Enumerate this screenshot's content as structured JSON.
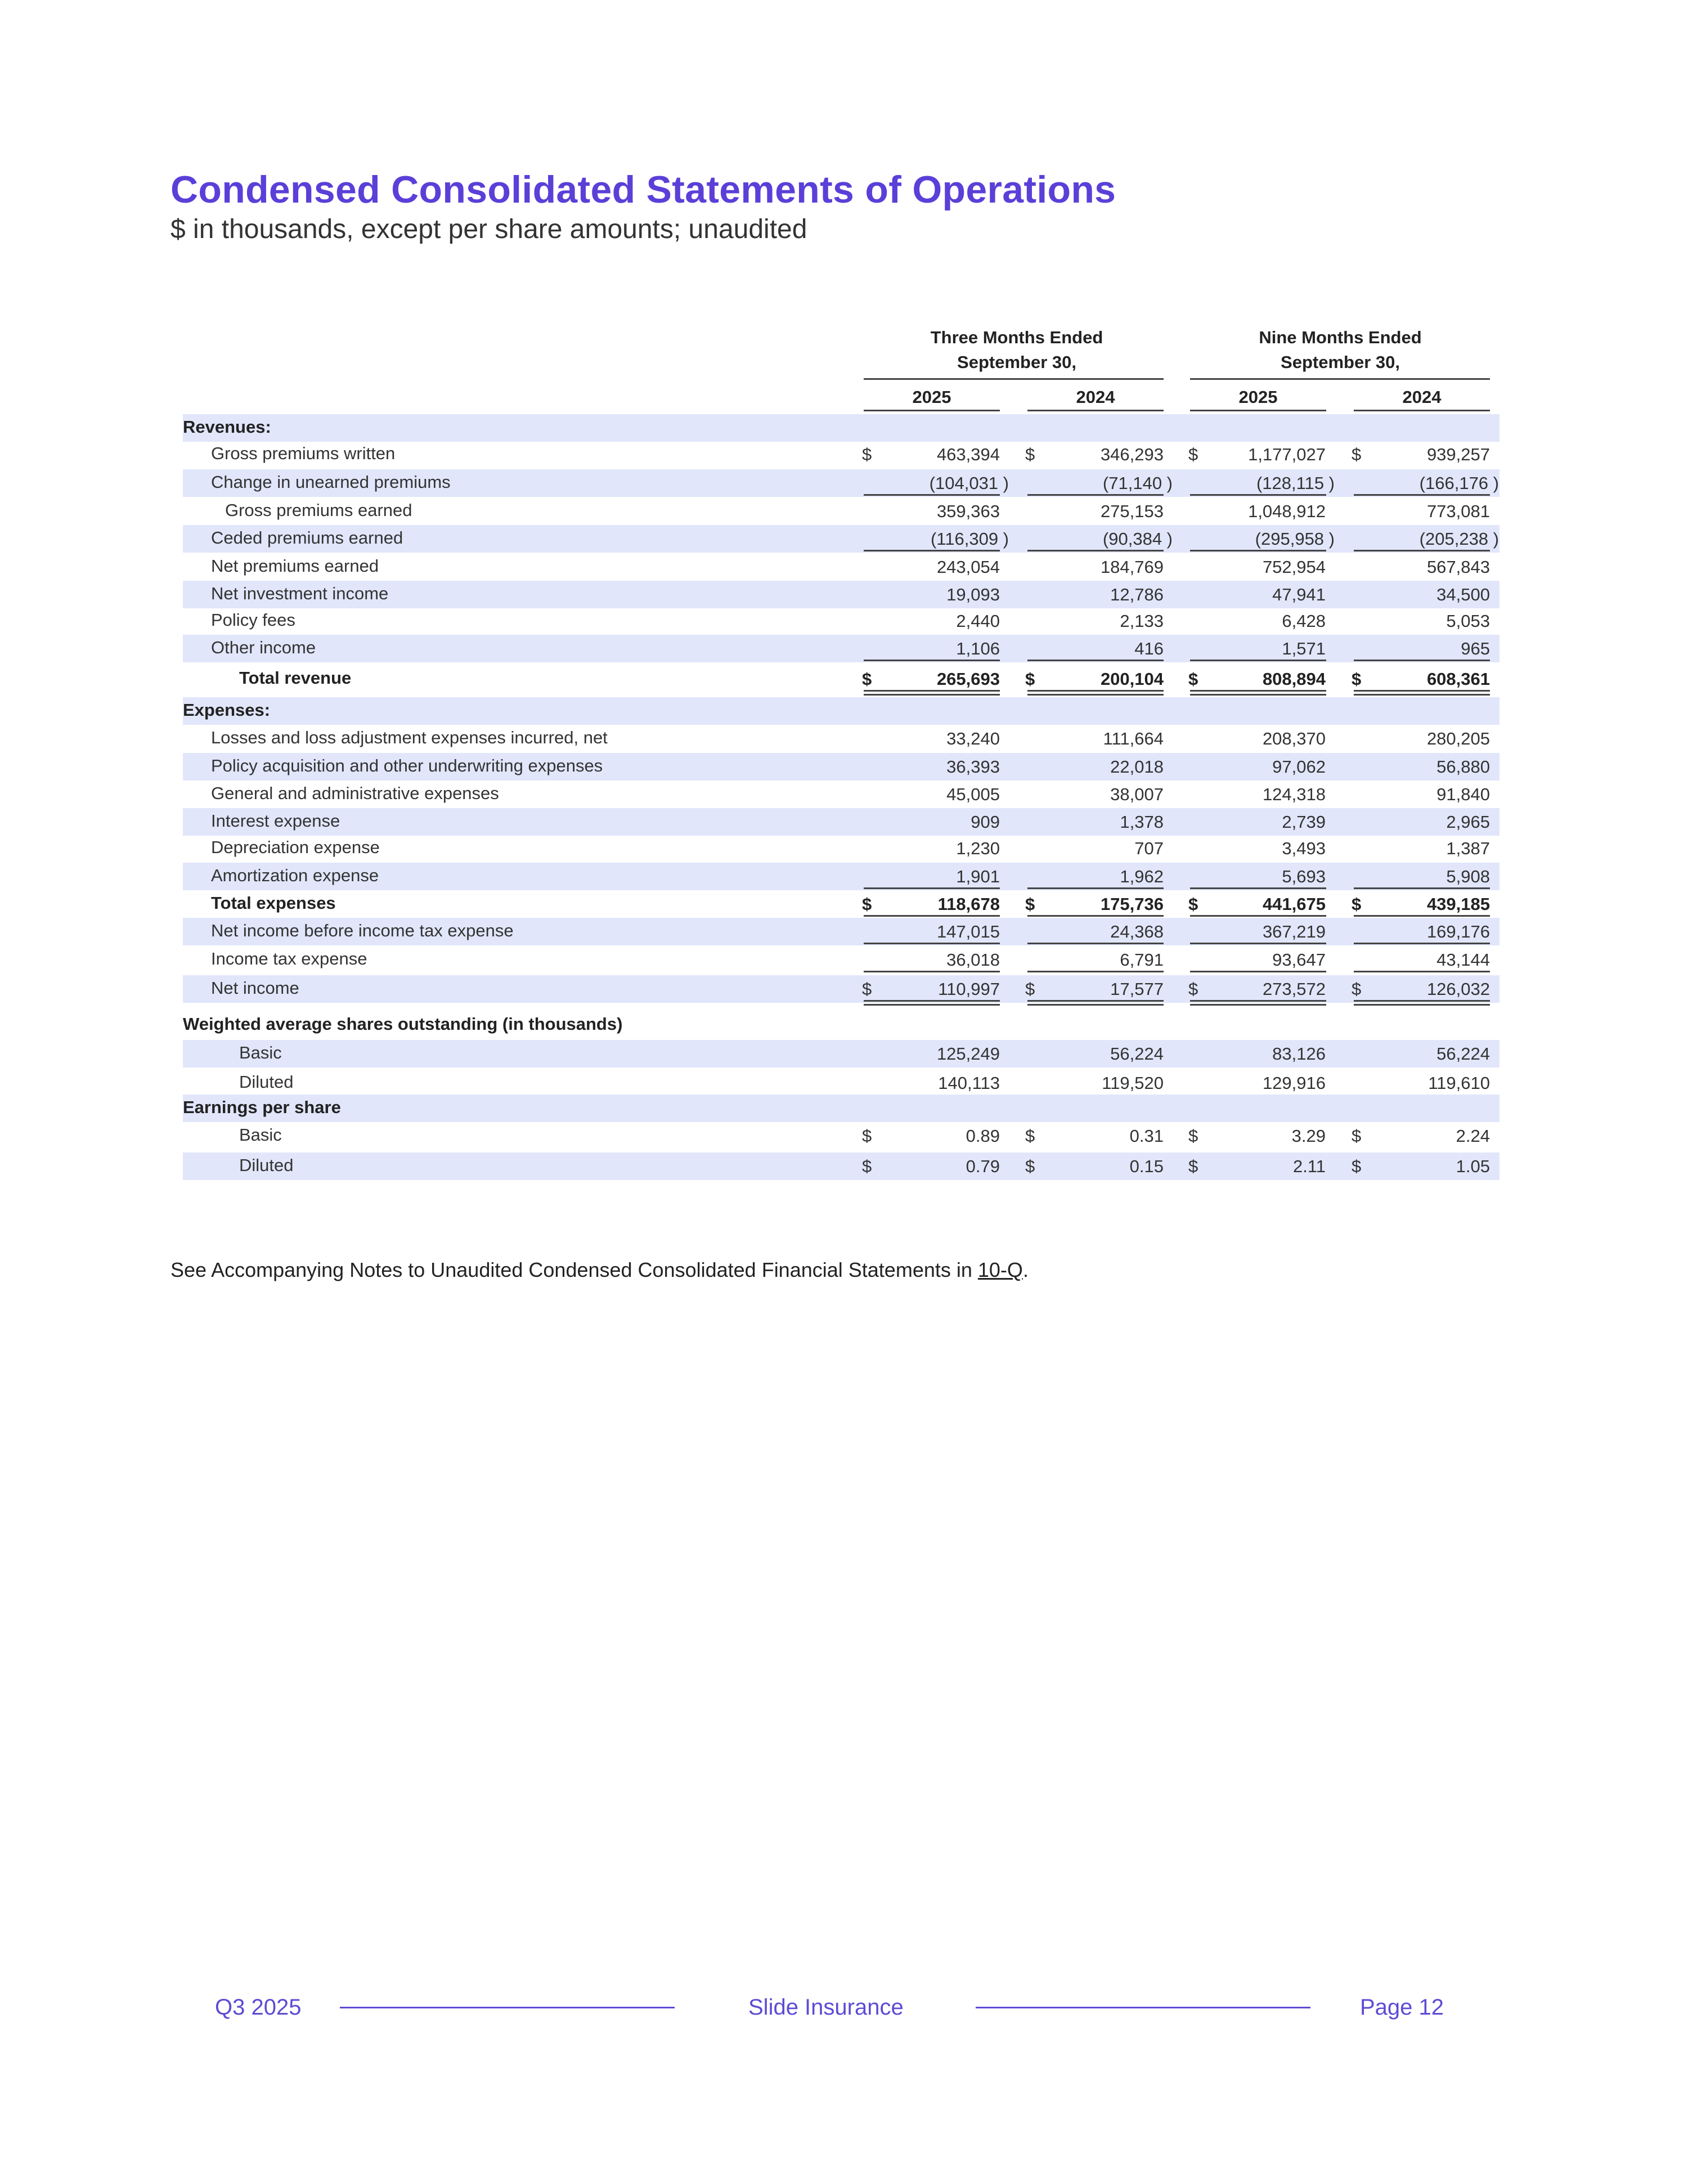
{
  "header": {
    "title": "Condensed Consolidated Statements of Operations",
    "subtitle": "$ in thousands, except per share amounts; unaudited"
  },
  "table": {
    "group_headers": [
      {
        "line1": "Three Months Ended",
        "line2": "September 30,"
      },
      {
        "line1": "Nine Months Ended",
        "line2": "September 30,"
      }
    ],
    "years": [
      "2025",
      "2024",
      "2025",
      "2024"
    ],
    "currency_symbol": "$",
    "rows": [
      {
        "label": "Revenues:",
        "indent": 0,
        "bold": true,
        "section": true,
        "shaded": true,
        "values": []
      },
      {
        "label": "Gross premiums written",
        "indent": 1,
        "shaded": false,
        "dollar": true,
        "values": [
          "463,394",
          "346,293",
          "1,177,027",
          "939,257"
        ]
      },
      {
        "label": "Change in unearned premiums",
        "indent": 1,
        "shaded": true,
        "underline": "single",
        "values": [
          "(104,031 )",
          "(71,140 )",
          "(128,115 )",
          "(166,176 )"
        ]
      },
      {
        "label": "Gross premiums earned",
        "indent": 1.5,
        "shaded": false,
        "values": [
          "359,363",
          "275,153",
          "1,048,912",
          "773,081"
        ]
      },
      {
        "label": "Ceded premiums earned",
        "indent": 1,
        "shaded": true,
        "underline": "single",
        "values": [
          "(116,309 )",
          "(90,384 )",
          "(295,958 )",
          "(205,238 )"
        ]
      },
      {
        "label": "Net premiums earned",
        "indent": 1,
        "shaded": false,
        "values": [
          "243,054",
          "184,769",
          "752,954",
          "567,843"
        ]
      },
      {
        "label": "Net investment income",
        "indent": 1,
        "shaded": true,
        "values": [
          "19,093",
          "12,786",
          "47,941",
          "34,500"
        ]
      },
      {
        "label": "Policy fees",
        "indent": 1,
        "shaded": false,
        "values": [
          "2,440",
          "2,133",
          "6,428",
          "5,053"
        ]
      },
      {
        "label": "Other income",
        "indent": 1,
        "shaded": true,
        "underline": "single",
        "values": [
          "1,106",
          "416",
          "1,571",
          "965"
        ]
      },
      {
        "label": "Total revenue",
        "indent": 2,
        "bold": true,
        "shaded": false,
        "dollar": true,
        "underline": "double",
        "values": [
          "265,693",
          "200,104",
          "808,894",
          "608,361"
        ]
      },
      {
        "label": "Expenses:",
        "indent": 0,
        "bold": true,
        "section": true,
        "shaded": true,
        "values": []
      },
      {
        "label": "Losses and loss adjustment expenses incurred, net",
        "indent": 1,
        "shaded": false,
        "values": [
          "33,240",
          "111,664",
          "208,370",
          "280,205"
        ]
      },
      {
        "label": "Policy acquisition and other underwriting expenses",
        "indent": 1,
        "shaded": true,
        "values": [
          "36,393",
          "22,018",
          "97,062",
          "56,880"
        ]
      },
      {
        "label": "General and administrative expenses",
        "indent": 1,
        "shaded": false,
        "values": [
          "45,005",
          "38,007",
          "124,318",
          "91,840"
        ]
      },
      {
        "label": "Interest expense",
        "indent": 1,
        "shaded": true,
        "values": [
          "909",
          "1,378",
          "2,739",
          "2,965"
        ]
      },
      {
        "label": "Depreciation expense",
        "indent": 1,
        "shaded": false,
        "values": [
          "1,230",
          "707",
          "3,493",
          "1,387"
        ]
      },
      {
        "label": "Amortization expense",
        "indent": 1,
        "shaded": true,
        "underline": "single",
        "values": [
          "1,901",
          "1,962",
          "5,693",
          "5,908"
        ]
      },
      {
        "label": "Total expenses",
        "indent": 1,
        "bold": true,
        "shaded": false,
        "dollar": true,
        "underline": "single",
        "values": [
          "118,678",
          "175,736",
          "441,675",
          "439,185"
        ]
      },
      {
        "label": "Net income before income tax expense",
        "indent": 1,
        "shaded": true,
        "underline": "single",
        "values": [
          "147,015",
          "24,368",
          "367,219",
          "169,176"
        ]
      },
      {
        "label": "Income tax expense",
        "indent": 1,
        "shaded": false,
        "underline": "single",
        "values": [
          "36,018",
          "6,791",
          "93,647",
          "43,144"
        ]
      },
      {
        "label": "Net income",
        "indent": 1,
        "shaded": true,
        "dollar": true,
        "underline": "double",
        "values": [
          "110,997",
          "17,577",
          "273,572",
          "126,032"
        ]
      },
      {
        "label": "Weighted average shares outstanding (in thousands)",
        "indent": 0,
        "bold": true,
        "section": true,
        "shaded": false,
        "values": []
      },
      {
        "label": "Basic",
        "indent": 2,
        "shaded": true,
        "values": [
          "125,249",
          "56,224",
          "83,126",
          "56,224"
        ]
      },
      {
        "label": "Diluted",
        "indent": 2,
        "shaded": false,
        "values": [
          "140,113",
          "119,520",
          "129,916",
          "119,610"
        ]
      },
      {
        "label": "Earnings per share",
        "indent": 0,
        "bold": true,
        "section": true,
        "shaded": true,
        "values": []
      },
      {
        "label": "Basic",
        "indent": 2,
        "shaded": false,
        "dollar": true,
        "values": [
          "0.89",
          "0.31",
          "3.29",
          "2.24"
        ]
      },
      {
        "label": "Diluted",
        "indent": 2,
        "shaded": true,
        "dollar": true,
        "values": [
          "0.79",
          "0.15",
          "2.11",
          "1.05"
        ]
      }
    ]
  },
  "note": {
    "text": "See Accompanying Notes to Unaudited Condensed Consolidated Financial Statements in ",
    "link": "10-Q",
    "end": "."
  },
  "footer": {
    "left": "Q3 2025",
    "center": "Slide Insurance",
    "right": "Page 12"
  },
  "colors": {
    "accent": "#5b3fd8",
    "row_shade": "#e1e6fb",
    "footer": "#5d4bd4"
  }
}
